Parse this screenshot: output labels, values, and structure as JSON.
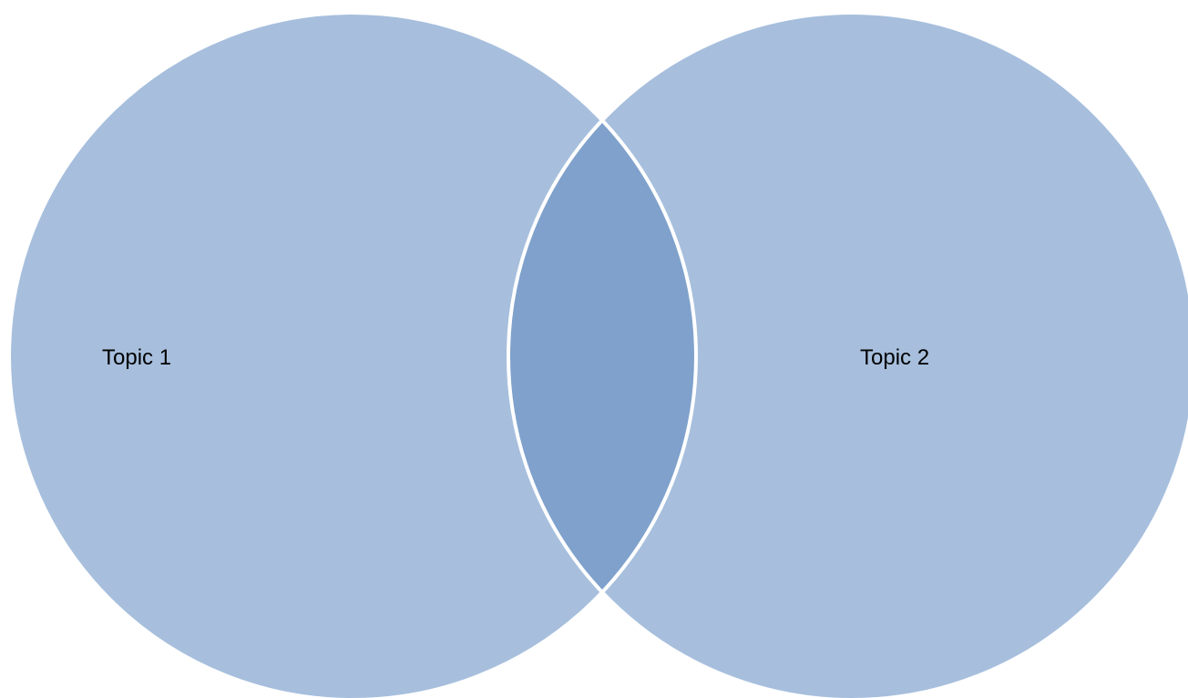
{
  "diagram": {
    "type": "venn",
    "sets": [
      {
        "label": "Topic 1"
      },
      {
        "label": "Topic 2"
      }
    ],
    "colors": {
      "circle_fill": "#a7bfdd",
      "overlap_fill": "#7fa1cc",
      "outline": "#ffffff"
    }
  }
}
